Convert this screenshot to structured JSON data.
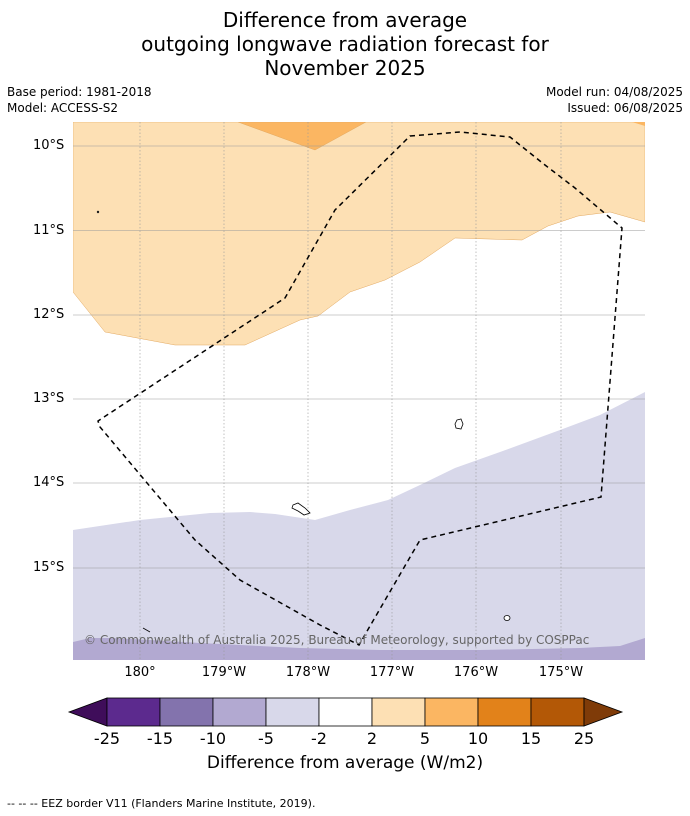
{
  "title": {
    "line1": "Difference from average",
    "line2": "outgoing longwave radiation forecast for",
    "line3": "November 2025"
  },
  "meta": {
    "base_period": "Base period: 1981-2018",
    "model": "Model: ACCESS-S2",
    "model_run": "Model run: 04/08/2025",
    "issued": "Issued: 06/08/2025"
  },
  "map": {
    "latitudes": [
      "10°S",
      "11°S",
      "12°S",
      "13°S",
      "14°S",
      "15°S"
    ],
    "longitudes": [
      "180°",
      "179°W",
      "178°W",
      "177°W",
      "176°W",
      "175°W"
    ],
    "copyright": "© Commonwealth of Australia 2025, Bureau of Meteorology, supported by COSPPac"
  },
  "colorbar": {
    "ticks": [
      "-25",
      "-15",
      "-10",
      "-5",
      "-2",
      "2",
      "5",
      "10",
      "15",
      "25"
    ],
    "colors": [
      "#3f0d5a",
      "#5c2a8e",
      "#8373ad",
      "#b2a9d1",
      "#d8d8ea",
      "#ffffff",
      "#fde0b4",
      "#fbb662",
      "#e2821a",
      "#b35806",
      "#7f3b08"
    ],
    "label": "Difference from average (W/m2)"
  },
  "footnote": "--  --  -- EEZ border V11 (Flanders Marine Institute, 2019)."
}
